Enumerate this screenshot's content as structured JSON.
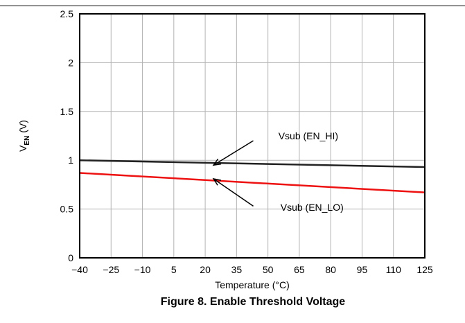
{
  "chart_data": {
    "type": "line",
    "caption": "Figure 8. Enable Threshold Voltage",
    "xlabel": "Temperature (°C)",
    "ylabel": {
      "main": "V",
      "sub": "EN",
      "unit": " (V)"
    },
    "xlim": [
      -40,
      125
    ],
    "ylim": [
      0,
      2.5
    ],
    "x_ticks": [
      -40,
      -25,
      -10,
      5,
      20,
      35,
      50,
      65,
      80,
      95,
      110,
      125
    ],
    "x_tick_labels": [
      "−40",
      "−25",
      "−10",
      "5",
      "20",
      "35",
      "50",
      "65",
      "80",
      "95",
      "110",
      "125"
    ],
    "y_ticks": [
      0,
      0.5,
      1,
      1.5,
      2,
      2.5
    ],
    "y_tick_labels": [
      "0",
      "0.5",
      "1",
      "1.5",
      "2",
      "2.5"
    ],
    "grid": true,
    "series": [
      {
        "name": "Vsub (EN_HI)",
        "color": "#222222",
        "x": [
          -40,
          125
        ],
        "y": [
          1.0,
          0.93
        ]
      },
      {
        "name": "Vsub (EN_LO)",
        "color": "#ee1111",
        "x": [
          -40,
          125
        ],
        "y": [
          0.87,
          0.67
        ]
      }
    ],
    "annotations": [
      {
        "text": "Vsub (EN_HI)",
        "text_at": [
          55,
          1.25
        ],
        "arrow_from": [
          43,
          1.2
        ],
        "arrow_to": [
          24,
          0.95
        ]
      },
      {
        "text": "Vsub (EN_LO)",
        "text_at": [
          56,
          0.52
        ],
        "arrow_from": [
          43,
          0.53
        ],
        "arrow_to": [
          24,
          0.81
        ]
      }
    ]
  }
}
